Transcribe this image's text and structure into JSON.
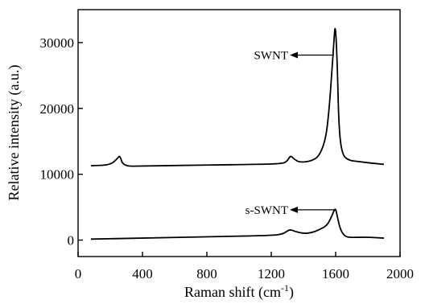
{
  "chart_data": {
    "type": "line",
    "title": "",
    "xlabel": "Raman shift (cm",
    "xlabel_sup": "-1",
    "xlabel_end": ")",
    "ylabel": "Relative intensity (a.u.)",
    "xlim": [
      0,
      2000
    ],
    "ylim": [
      -2500,
      35000
    ],
    "xticks": [
      0,
      400,
      800,
      1200,
      1600,
      2000
    ],
    "yticks": [
      0,
      10000,
      20000,
      30000
    ],
    "grid": false,
    "legend": "none",
    "series": [
      {
        "name": "SWNT",
        "x": [
          80,
          200,
          245,
          260,
          280,
          400,
          800,
          1100,
          1270,
          1300,
          1320,
          1345,
          1380,
          1450,
          1500,
          1540,
          1560,
          1575,
          1590,
          1598,
          1610,
          1620,
          1640,
          1680,
          1750,
          1820,
          1900
        ],
        "y": [
          11300,
          11400,
          12400,
          12900,
          11200,
          11250,
          11400,
          11500,
          11600,
          12000,
          12900,
          12200,
          11800,
          12000,
          12800,
          15500,
          20000,
          25000,
          30500,
          33000,
          27000,
          17000,
          13000,
          12100,
          11900,
          11700,
          11500
        ]
      },
      {
        "name": "s-SWNT",
        "x": [
          80,
          400,
          800,
          1200,
          1270,
          1300,
          1320,
          1350,
          1400,
          1450,
          1500,
          1545,
          1570,
          1590,
          1600,
          1610,
          1630,
          1660,
          1700,
          1800,
          1900
        ],
        "y": [
          150,
          300,
          500,
          700,
          900,
          1400,
          1600,
          1300,
          1000,
          1100,
          1600,
          2200,
          3300,
          4500,
          4800,
          3600,
          1500,
          500,
          400,
          450,
          300
        ]
      }
    ],
    "annotations": [
      {
        "text": "SWNT",
        "target_x": 1590,
        "target_y": 28100
      },
      {
        "text": "s-SWNT",
        "target_x": 1590,
        "target_y": 4600
      }
    ]
  }
}
